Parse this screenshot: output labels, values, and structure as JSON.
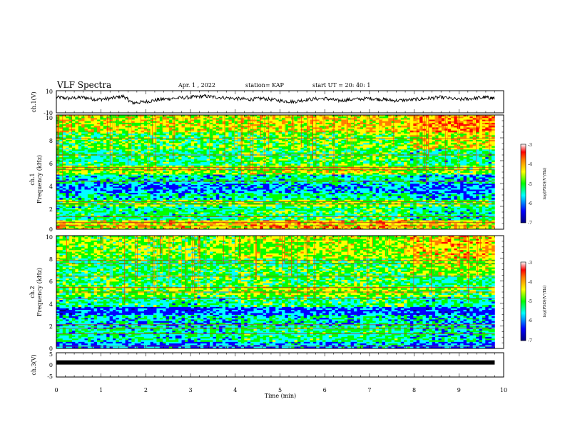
{
  "header": {
    "title": "VLF Spectra",
    "date": "Apr. 1 , 2022",
    "station": "station= KAP",
    "start": "start UT = 20: 40: 1"
  },
  "chart_data": [
    {
      "type": "line",
      "name": "ch1-voltage",
      "ylabel": "ch.1(V)",
      "xlim": [
        0,
        10
      ],
      "ylim": [
        -10,
        10
      ],
      "y_ticks": [
        "10",
        "-10"
      ],
      "note_values": "noisy waveform around ~3 V, 0 to 9.8 min",
      "x": [
        0.0,
        0.3,
        0.6,
        0.9,
        1.2,
        1.5,
        1.7,
        2.0,
        2.3,
        2.6,
        3.0,
        3.3,
        3.6,
        4.0,
        4.3,
        4.6,
        5.0,
        5.3,
        5.6,
        6.0,
        6.3,
        6.6,
        7.0,
        7.3,
        7.6,
        8.0,
        8.3,
        8.6,
        9.0,
        9.3,
        9.6,
        9.8
      ],
      "y": [
        4,
        3,
        4,
        2,
        3,
        5,
        -1,
        0,
        2,
        3,
        4,
        5,
        4,
        3,
        2,
        3,
        1,
        0,
        2,
        3,
        1,
        2,
        3,
        2,
        1,
        2,
        3,
        4,
        2,
        3,
        4,
        3
      ]
    },
    {
      "type": "heatmap",
      "name": "ch1-spectrogram",
      "ylabel_line1": "ch.1",
      "ylabel_line2": "Frequency (kHz)",
      "xlim": [
        0,
        10
      ],
      "ylim": [
        0,
        10
      ],
      "y_ticks": [
        "0",
        "2",
        "4",
        "6",
        "8",
        "10"
      ],
      "colorbar": {
        "label": "log(PSD)(V²/Hz)",
        "range": [
          -7,
          -3
        ],
        "ticks": [
          "-3",
          "-4",
          "-5",
          "-6",
          "-7"
        ]
      },
      "data_end_min": 9.8,
      "level_bands": [
        {
          "f0": 0.0,
          "f1": 0.8,
          "level": -4.0
        },
        {
          "f0": 0.8,
          "f1": 2.0,
          "level": -5.0
        },
        {
          "f0": 2.0,
          "f1": 2.6,
          "level": -4.6
        },
        {
          "f0": 2.6,
          "f1": 3.2,
          "level": -5.2
        },
        {
          "f0": 3.2,
          "f1": 4.0,
          "level": -5.6
        },
        {
          "f0": 4.0,
          "f1": 4.8,
          "level": -5.2
        },
        {
          "f0": 4.8,
          "f1": 5.6,
          "level": -4.4
        },
        {
          "f0": 5.6,
          "f1": 7.0,
          "level": -4.9
        },
        {
          "f0": 7.0,
          "f1": 8.5,
          "level": -4.7
        },
        {
          "f0": 8.5,
          "f1": 10.0,
          "level": -4.2
        }
      ],
      "lines_kHz": [
        0.3,
        0.6,
        1.1,
        2.2,
        2.4,
        4.2,
        5.2,
        5.4,
        6.5,
        7.9
      ],
      "segment_change_min": [
        4.1,
        7.9
      ]
    },
    {
      "type": "heatmap",
      "name": "ch2-spectrogram",
      "ylabel_line1": "ch.2",
      "ylabel_line2": "Frequency (kHz)",
      "xlim": [
        0,
        10
      ],
      "ylim": [
        0,
        10
      ],
      "y_ticks": [
        "0",
        "2",
        "4",
        "6",
        "8",
        "10"
      ],
      "colorbar": {
        "label": "log(PSD)(V²/Hz)",
        "range": [
          -7,
          -3
        ],
        "ticks": [
          "-3",
          "-4",
          "-5",
          "-6",
          "-7"
        ]
      },
      "data_end_min": 9.8,
      "level_bands": [
        {
          "f0": 0.0,
          "f1": 0.6,
          "level": -5.6
        },
        {
          "f0": 0.6,
          "f1": 2.0,
          "level": -5.1
        },
        {
          "f0": 2.0,
          "f1": 3.0,
          "level": -5.3
        },
        {
          "f0": 3.0,
          "f1": 3.7,
          "level": -5.8
        },
        {
          "f0": 3.7,
          "f1": 4.6,
          "level": -5.0
        },
        {
          "f0": 4.6,
          "f1": 5.5,
          "level": -4.5
        },
        {
          "f0": 5.5,
          "f1": 6.5,
          "level": -4.8
        },
        {
          "f0": 6.5,
          "f1": 8.0,
          "level": -4.9
        },
        {
          "f0": 8.0,
          "f1": 10.0,
          "level": -4.5
        }
      ],
      "lines_kHz": [
        0.2,
        1.3,
        1.8,
        2.1,
        4.4,
        5.0,
        5.4,
        6.4,
        7.5,
        7.8
      ],
      "segment_change_min": [
        4.1,
        7.9
      ]
    },
    {
      "type": "line",
      "name": "ch3-voltage",
      "ylabel": "ch.3(V)",
      "xlim": [
        0,
        10
      ],
      "ylim": [
        -5,
        5
      ],
      "y_ticks": [
        "5",
        "0",
        "-5"
      ],
      "x": [
        0.0,
        9.8
      ],
      "y": [
        1,
        1
      ],
      "xlabel": "Time (min)",
      "x_ticks": [
        "0",
        "1",
        "2",
        "3",
        "4",
        "5",
        "6",
        "7",
        "8",
        "9",
        "10"
      ]
    }
  ],
  "colors": {
    "trace": "#000000",
    "colormap": [
      "#00007f",
      "#0000ff",
      "#00ffff",
      "#00ff00",
      "#ffff00",
      "#ff7f00",
      "#ff0000",
      "#ffffff"
    ]
  }
}
